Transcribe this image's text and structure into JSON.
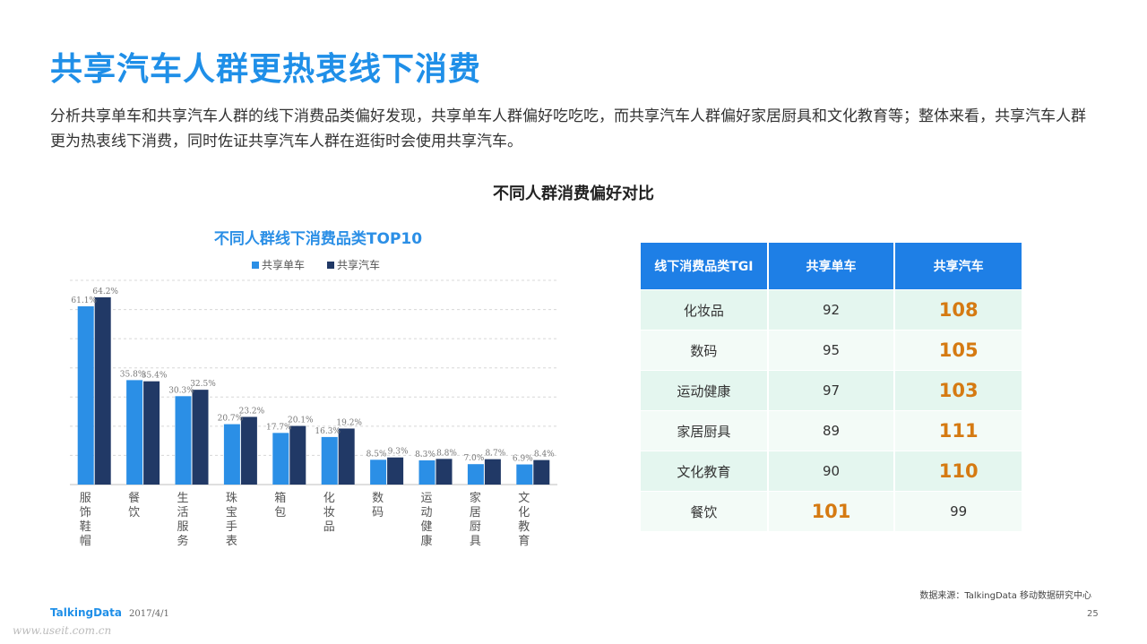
{
  "header": {
    "title": "共享汽车人群更热衷线下消费",
    "description": "分析共享单车和共享汽车人群的线下消费品类偏好发现，共享单车人群偏好吃吃吃，而共享汽车人群偏好家居厨具和文化教育等；整体来看，共享汽车人群更为热衷线下消费，同时佐证共享汽车人群在逛街时会使用共享汽车。"
  },
  "section_title": "不同人群消费偏好对比",
  "colors": {
    "bike": "#2b8fe6",
    "car": "#213966",
    "accent": "#1f8fe8",
    "highlight": "#d57a12"
  },
  "chart_data": [
    {
      "type": "bar",
      "title": "不同人群线下消费品类TOP10",
      "categories": [
        "服饰鞋帽",
        "餐饮",
        "生活服务",
        "珠宝手表",
        "箱包",
        "化妆品",
        "数码",
        "运动健康",
        "家居厨具",
        "文化教育"
      ],
      "series": [
        {
          "name": "共享单车",
          "values": [
            61.1,
            35.8,
            30.3,
            20.7,
            17.7,
            16.3,
            8.5,
            8.3,
            7.0,
            6.9
          ],
          "labels": [
            "61.1%",
            "35.8%",
            "30.3%",
            "20.7%",
            "17.7%",
            "16.3%",
            "8.5%",
            "8.3%",
            "7.0%",
            "6.9%"
          ]
        },
        {
          "name": "共享汽车",
          "values": [
            64.2,
            35.4,
            32.5,
            23.2,
            20.1,
            19.2,
            9.3,
            8.8,
            8.7,
            8.4
          ],
          "labels": [
            "64.2%",
            "35.4%",
            "32.5%",
            "23.2%",
            "20.1%",
            "19.2%",
            "9.3%",
            "8.8%",
            "8.7%",
            "8.4%"
          ]
        }
      ],
      "ylim": [
        0,
        70
      ],
      "grid": true,
      "legend": "top-center"
    },
    {
      "type": "table",
      "columns": [
        "线下消费品类TGI",
        "共享单车",
        "共享汽车"
      ],
      "rows": [
        {
          "category": "化妆品",
          "bike": "92",
          "car": "108",
          "highlight": "car"
        },
        {
          "category": "数码",
          "bike": "95",
          "car": "105",
          "highlight": "car"
        },
        {
          "category": "运动健康",
          "bike": "97",
          "car": "103",
          "highlight": "car"
        },
        {
          "category": "家居厨具",
          "bike": "89",
          "car": "111",
          "highlight": "car"
        },
        {
          "category": "文化教育",
          "bike": "90",
          "car": "110",
          "highlight": "car"
        },
        {
          "category": "餐饮",
          "bike": "101",
          "car": "99",
          "highlight": "bike"
        }
      ]
    }
  ],
  "footer": {
    "source": "数据来源：TalkingData 移动数据研究中心",
    "brand": "TalkingData",
    "date": "2017/4/1",
    "page_number": "25",
    "watermark": "www.useit.com.cn"
  }
}
